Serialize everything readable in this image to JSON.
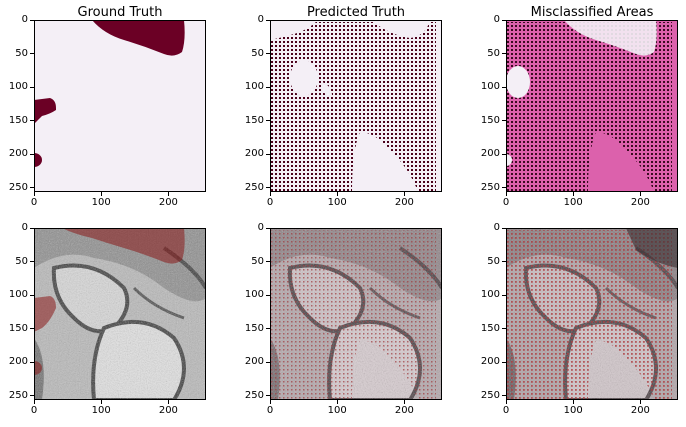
{
  "colors": {
    "background_light": "#f4eff6",
    "mask_dark": "#6b0025",
    "misclass_pink": "#dc61ac",
    "dot_color": "#4a001a"
  },
  "chart_data": [
    {
      "type": "heatmap",
      "title": "Ground Truth",
      "content": "binary mask",
      "xlim": [
        0,
        256
      ],
      "ylim": [
        256,
        0
      ],
      "xticks": [
        0,
        100,
        200
      ],
      "yticks": [
        0,
        50,
        100,
        150,
        200,
        250
      ]
    },
    {
      "type": "heatmap",
      "title": "Predicted Truth",
      "content": "dotted prediction mask",
      "xlim": [
        0,
        256
      ],
      "ylim": [
        256,
        0
      ],
      "xticks": [
        0,
        100,
        200
      ],
      "yticks": [
        0,
        50,
        100,
        150,
        200,
        250
      ]
    },
    {
      "type": "heatmap",
      "title": "Misclassified Areas",
      "content": "misclassification map",
      "xlim": [
        0,
        256
      ],
      "ylim": [
        256,
        0
      ],
      "xticks": [
        0,
        100,
        200
      ],
      "yticks": [
        0,
        50,
        100,
        150,
        200,
        250
      ]
    },
    {
      "type": "heatmap",
      "title": "",
      "content": "micrograph with ground truth overlay",
      "xlim": [
        0,
        256
      ],
      "ylim": [
        256,
        0
      ],
      "xticks": [
        0,
        100,
        200
      ],
      "yticks": [
        0,
        50,
        100,
        150,
        200,
        250
      ]
    },
    {
      "type": "heatmap",
      "title": "",
      "content": "micrograph with prediction overlay",
      "xlim": [
        0,
        256
      ],
      "ylim": [
        256,
        0
      ],
      "xticks": [
        0,
        100,
        200
      ],
      "yticks": [
        0,
        50,
        100,
        150,
        200,
        250
      ]
    },
    {
      "type": "heatmap",
      "title": "",
      "content": "micrograph with misclassification overlay",
      "xlim": [
        0,
        256
      ],
      "ylim": [
        256,
        0
      ],
      "xticks": [
        0,
        100,
        200
      ],
      "yticks": [
        0,
        50,
        100,
        150,
        200,
        250
      ]
    }
  ]
}
